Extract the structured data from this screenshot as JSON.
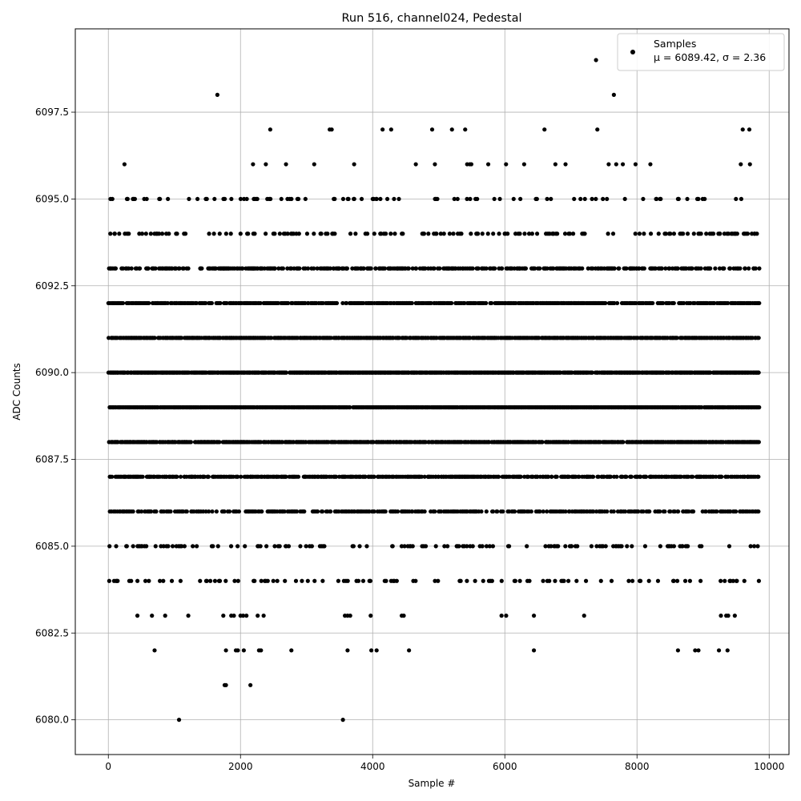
{
  "chart_data": {
    "type": "scatter",
    "title": "Run 516, channel024, Pedestal",
    "xlabel": "Sample #",
    "ylabel": "ADC Counts",
    "xlim": [
      -500,
      10300
    ],
    "ylim": [
      6079.0,
      6099.9
    ],
    "xticks": [
      0,
      2000,
      4000,
      6000,
      8000,
      10000
    ],
    "xtick_labels": [
      "0",
      "2000",
      "4000",
      "6000",
      "8000",
      "10000"
    ],
    "yticks": [
      6080.0,
      6082.5,
      6085.0,
      6087.5,
      6090.0,
      6092.5,
      6095.0,
      6097.5
    ],
    "ytick_labels": [
      "6080.0",
      "6082.5",
      "6085.0",
      "6087.5",
      "6090.0",
      "6092.5",
      "6095.0",
      "6097.5"
    ],
    "grid": true,
    "legend_position": "top-right",
    "legend": {
      "series_label": "Samples",
      "stats_label": "μ = 6089.42, σ = 2.36"
    },
    "point_color": "#000000",
    "series": [
      {
        "name": "Samples",
        "sample_count": 9850,
        "bands": [
          {
            "y": 6080,
            "x": [
              1070,
              3550
            ]
          },
          {
            "y": 6081,
            "x": [
              1760,
              1780,
              2150
            ]
          },
          {
            "y": 6082,
            "x": [
              700,
              1780,
              1930,
              1960,
              2050,
              2280,
              2310,
              2770,
              3620,
              3980,
              4060,
              4550,
              6440,
              8620,
              8880,
              8930,
              9240,
              9370
            ]
          },
          {
            "y": 6083,
            "x": [
              440,
              660,
              860,
              1210,
              1740,
              1860,
              1900,
              2000,
              2040,
              2090,
              2260,
              2350,
              3580,
              3620,
              3660,
              3970,
              4440,
              4470,
              5950,
              6020,
              6440,
              7200,
              9270,
              9350,
              9380,
              9480
            ]
          },
          {
            "y": 6097,
            "x": [
              2450,
              3350,
              3380,
              4150,
              4280,
              4900,
              5200,
              5400,
              6600,
              7400,
              9600,
              9700
            ]
          },
          {
            "y": 6098,
            "x": [
              1650,
              7650
            ]
          },
          {
            "y": 6099,
            "x": [
              7380
            ]
          }
        ],
        "dense_levels": [
          {
            "y": 6084,
            "density": 0.12
          },
          {
            "y": 6085,
            "density": 0.18
          },
          {
            "y": 6086,
            "density": 0.42
          },
          {
            "y": 6087,
            "density": 0.62
          },
          {
            "y": 6088,
            "density": 0.78
          },
          {
            "y": 6089,
            "density": 0.9
          },
          {
            "y": 6090,
            "density": 0.9
          },
          {
            "y": 6091,
            "density": 0.8
          },
          {
            "y": 6092,
            "density": 0.62
          },
          {
            "y": 6093,
            "density": 0.42
          },
          {
            "y": 6094,
            "density": 0.2
          },
          {
            "y": 6095,
            "density": 0.1
          },
          {
            "y": 6096,
            "density": 0.04
          }
        ]
      }
    ]
  }
}
